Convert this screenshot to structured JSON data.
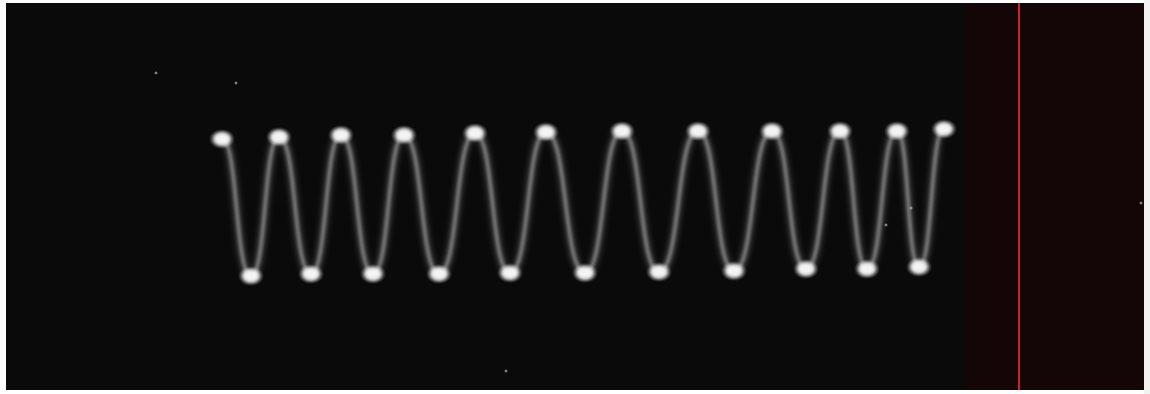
{
  "image": {
    "subject": "oscilloscope-trace-photograph",
    "colors": {
      "background": "#0a0a0a",
      "trace": "#f4f4f4",
      "glow": "#ffffff",
      "reticle_line": "#c8262a",
      "right_panel": "#140606"
    }
  },
  "trace": {
    "peak_count": 12,
    "trough_count": 11
  }
}
